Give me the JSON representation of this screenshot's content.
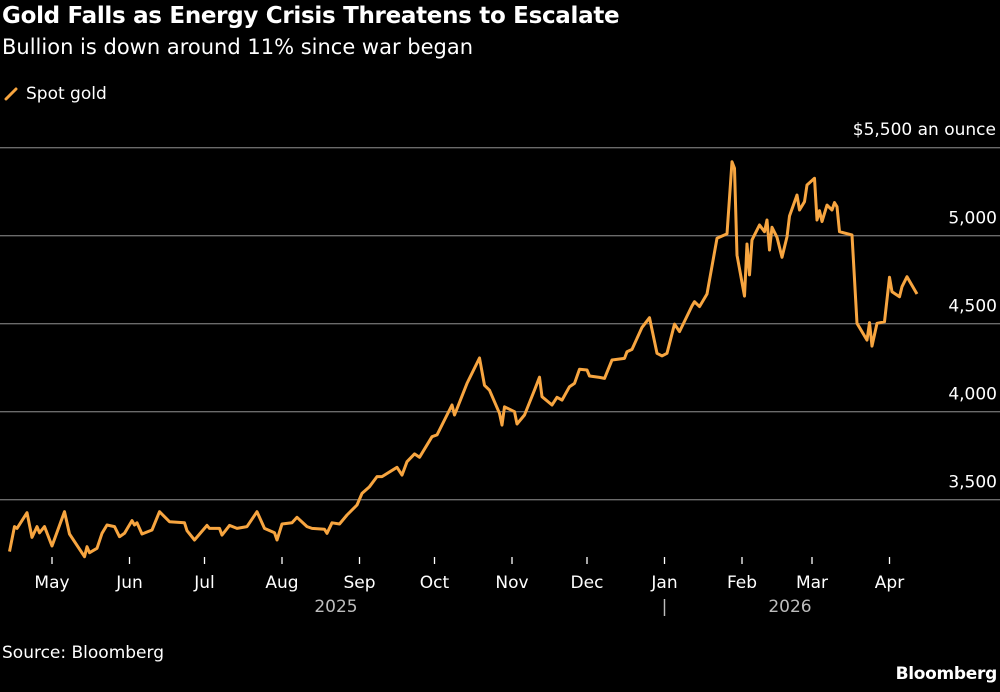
{
  "header": {
    "title": "Gold Falls as Energy Crisis Threatens to Escalate",
    "subtitle": "Bullion is down around 11% since war began"
  },
  "footer": {
    "source": "Source: Bloomberg",
    "logo": "Bloomberg"
  },
  "chart_data": {
    "type": "line",
    "title": "Gold Falls as Energy Crisis Threatens to Escalate",
    "subtitle": "Bullion is down around 11% since war began",
    "ylabel": "$5,500 an ounce",
    "ylim": [
      3200,
      5500
    ],
    "yticks": [
      {
        "value": 5500,
        "label": "$5,500 an ounce"
      },
      {
        "value": 5000,
        "label": "5,000"
      },
      {
        "value": 4500,
        "label": "4,500"
      },
      {
        "value": 4000,
        "label": "4,000"
      },
      {
        "value": 3500,
        "label": "3,500"
      }
    ],
    "xticks": [
      {
        "date": "2025-05-01",
        "label": "May"
      },
      {
        "date": "2025-06-01",
        "label": "Jun"
      },
      {
        "date": "2025-07-01",
        "label": "Jul"
      },
      {
        "date": "2025-08-01",
        "label": "Aug"
      },
      {
        "date": "2025-09-01",
        "label": "Sep"
      },
      {
        "date": "2025-10-01",
        "label": "Oct"
      },
      {
        "date": "2025-11-01",
        "label": "Nov"
      },
      {
        "date": "2025-12-01",
        "label": "Dec"
      },
      {
        "date": "2026-01-01",
        "label": "Jan"
      },
      {
        "date": "2026-02-01",
        "label": "Feb"
      },
      {
        "date": "2026-03-01",
        "label": "Mar"
      },
      {
        "date": "2026-04-01",
        "label": "Apr"
      }
    ],
    "year_labels": [
      "2025",
      "2026"
    ],
    "year_separator": "|",
    "grid": true,
    "legend": "top-left",
    "series": [
      {
        "name": "Spot gold",
        "color": "#f7a540",
        "points": [
          [
            "2025-04-14",
            3205
          ],
          [
            "2025-04-16",
            3347
          ],
          [
            "2025-04-17",
            3337
          ],
          [
            "2025-04-21",
            3426
          ],
          [
            "2025-04-23",
            3286
          ],
          [
            "2025-04-25",
            3347
          ],
          [
            "2025-04-26",
            3312
          ],
          [
            "2025-04-28",
            3347
          ],
          [
            "2025-05-01",
            3237
          ],
          [
            "2025-05-06",
            3432
          ],
          [
            "2025-05-08",
            3305
          ],
          [
            "2025-05-14",
            3176
          ],
          [
            "2025-05-15",
            3233
          ],
          [
            "2025-05-16",
            3199
          ],
          [
            "2025-05-19",
            3224
          ],
          [
            "2025-05-21",
            3309
          ],
          [
            "2025-05-23",
            3356
          ],
          [
            "2025-05-26",
            3347
          ],
          [
            "2025-05-28",
            3290
          ],
          [
            "2025-05-30",
            3309
          ],
          [
            "2025-06-02",
            3381
          ],
          [
            "2025-06-03",
            3356
          ],
          [
            "2025-06-04",
            3369
          ],
          [
            "2025-06-06",
            3305
          ],
          [
            "2025-06-10",
            3328
          ],
          [
            "2025-06-13",
            3432
          ],
          [
            "2025-06-17",
            3375
          ],
          [
            "2025-06-23",
            3369
          ],
          [
            "2025-06-24",
            3324
          ],
          [
            "2025-06-27",
            3271
          ],
          [
            "2025-07-02",
            3354
          ],
          [
            "2025-07-03",
            3337
          ],
          [
            "2025-07-07",
            3337
          ],
          [
            "2025-07-08",
            3299
          ],
          [
            "2025-07-11",
            3354
          ],
          [
            "2025-07-14",
            3337
          ],
          [
            "2025-07-18",
            3347
          ],
          [
            "2025-07-22",
            3432
          ],
          [
            "2025-07-25",
            3337
          ],
          [
            "2025-07-29",
            3312
          ],
          [
            "2025-07-30",
            3271
          ],
          [
            "2025-08-01",
            3362
          ],
          [
            "2025-08-05",
            3369
          ],
          [
            "2025-08-07",
            3400
          ],
          [
            "2025-08-11",
            3347
          ],
          [
            "2025-08-13",
            3337
          ],
          [
            "2025-08-18",
            3332
          ],
          [
            "2025-08-19",
            3309
          ],
          [
            "2025-08-21",
            3369
          ],
          [
            "2025-08-24",
            3362
          ],
          [
            "2025-08-27",
            3413
          ],
          [
            "2025-08-31",
            3470
          ],
          [
            "2025-09-02",
            3536
          ],
          [
            "2025-09-05",
            3574
          ],
          [
            "2025-09-08",
            3631
          ],
          [
            "2025-09-10",
            3631
          ],
          [
            "2025-09-16",
            3684
          ],
          [
            "2025-09-18",
            3640
          ],
          [
            "2025-09-20",
            3716
          ],
          [
            "2025-09-23",
            3760
          ],
          [
            "2025-09-25",
            3741
          ],
          [
            "2025-09-30",
            3858
          ],
          [
            "2025-10-02",
            3868
          ],
          [
            "2025-10-08",
            4038
          ],
          [
            "2025-10-09",
            3981
          ],
          [
            "2025-10-14",
            4161
          ],
          [
            "2025-10-19",
            4305
          ],
          [
            "2025-10-21",
            4150
          ],
          [
            "2025-10-23",
            4122
          ],
          [
            "2025-10-27",
            3991
          ],
          [
            "2025-10-28",
            3924
          ],
          [
            "2025-10-29",
            4028
          ],
          [
            "2025-11-02",
            4000
          ],
          [
            "2025-11-03",
            3930
          ],
          [
            "2025-11-06",
            3981
          ],
          [
            "2025-11-10",
            4123
          ],
          [
            "2025-11-12",
            4196
          ],
          [
            "2025-11-13",
            4085
          ],
          [
            "2025-11-17",
            4038
          ],
          [
            "2025-11-19",
            4082
          ],
          [
            "2025-11-21",
            4066
          ],
          [
            "2025-11-24",
            4142
          ],
          [
            "2025-11-26",
            4161
          ],
          [
            "2025-11-28",
            4241
          ],
          [
            "2025-12-01",
            4237
          ],
          [
            "2025-12-02",
            4203
          ],
          [
            "2025-12-06",
            4195
          ],
          [
            "2025-12-08",
            4189
          ],
          [
            "2025-12-11",
            4294
          ],
          [
            "2025-12-16",
            4303
          ],
          [
            "2025-12-17",
            4341
          ],
          [
            "2025-12-19",
            4354
          ],
          [
            "2025-12-23",
            4479
          ],
          [
            "2025-12-26",
            4534
          ],
          [
            "2025-12-29",
            4332
          ],
          [
            "2025-12-31",
            4317
          ],
          [
            "2026-01-02",
            4332
          ],
          [
            "2026-01-05",
            4498
          ],
          [
            "2026-01-07",
            4455
          ],
          [
            "2026-01-12",
            4601
          ],
          [
            "2026-01-13",
            4625
          ],
          [
            "2026-01-15",
            4597
          ],
          [
            "2026-01-18",
            4669
          ],
          [
            "2026-01-22",
            4985
          ],
          [
            "2026-01-26",
            5010
          ],
          [
            "2026-01-28",
            5420
          ],
          [
            "2026-01-29",
            5383
          ],
          [
            "2026-01-30",
            4890
          ],
          [
            "2026-02-02",
            4657
          ],
          [
            "2026-02-03",
            4953
          ],
          [
            "2026-02-04",
            4777
          ],
          [
            "2026-02-05",
            4976
          ],
          [
            "2026-02-08",
            5061
          ],
          [
            "2026-02-10",
            5023
          ],
          [
            "2026-02-11",
            5089
          ],
          [
            "2026-02-12",
            4919
          ],
          [
            "2026-02-13",
            5048
          ],
          [
            "2026-02-15",
            4991
          ],
          [
            "2026-02-17",
            4877
          ],
          [
            "2026-02-19",
            4994
          ],
          [
            "2026-02-20",
            5112
          ],
          [
            "2026-02-23",
            5231
          ],
          [
            "2026-02-24",
            5146
          ],
          [
            "2026-02-26",
            5193
          ],
          [
            "2026-02-27",
            5288
          ],
          [
            "2026-03-02",
            5326
          ],
          [
            "2026-03-03",
            5089
          ],
          [
            "2026-03-04",
            5142
          ],
          [
            "2026-03-05",
            5080
          ],
          [
            "2026-03-07",
            5174
          ],
          [
            "2026-03-09",
            5146
          ],
          [
            "2026-03-10",
            5188
          ],
          [
            "2026-03-11",
            5165
          ],
          [
            "2026-03-12",
            5023
          ],
          [
            "2026-03-17",
            5004
          ],
          [
            "2026-03-19",
            4502
          ],
          [
            "2026-03-23",
            4407
          ],
          [
            "2026-03-24",
            4506
          ],
          [
            "2026-03-25",
            4373
          ],
          [
            "2026-03-27",
            4502
          ],
          [
            "2026-03-30",
            4511
          ],
          [
            "2026-04-01",
            4764
          ],
          [
            "2026-04-02",
            4682
          ],
          [
            "2026-04-05",
            4653
          ],
          [
            "2026-04-06",
            4710
          ],
          [
            "2026-04-08",
            4767
          ],
          [
            "2026-04-12",
            4669
          ]
        ]
      }
    ]
  }
}
